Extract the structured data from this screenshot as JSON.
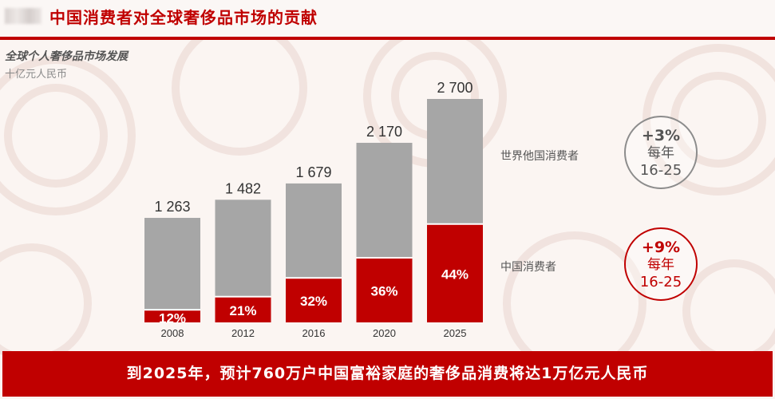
{
  "header": {
    "title": "中国消费者对全球奢侈品市场的贡献"
  },
  "chart": {
    "title": "全球个人奢侈品市场发展",
    "unit": "十亿元人民币"
  },
  "legend": {
    "others": "世界他国消费者",
    "china": "中国消费者"
  },
  "badges": {
    "others": {
      "rate": "+3%",
      "per": "每年",
      "period": "16-25"
    },
    "china": {
      "rate": "+9%",
      "per": "每年",
      "period": "16-25"
    }
  },
  "footer": {
    "text": "到2025年，预计760万户中国富裕家庭的奢侈品消费将达1万亿元人民币"
  },
  "colors": {
    "accent": "#c00000",
    "gray_bar": "#a6a6a6",
    "bg": "#fbf5f2"
  },
  "chart_data": {
    "type": "bar",
    "stacked": true,
    "categories": [
      "2008",
      "2012",
      "2016",
      "2020",
      "2025"
    ],
    "totals": [
      1263,
      1482,
      1679,
      2170,
      2700
    ],
    "total_labels": [
      "1 263",
      "1 482",
      "1 679",
      "2 170",
      "2 700"
    ],
    "series": [
      {
        "name": "中国消费者",
        "share_pct": [
          12,
          21,
          32,
          36,
          44
        ],
        "labels": [
          "12%",
          "21%",
          "32%",
          "36%",
          "44%"
        ],
        "color": "#c00000"
      },
      {
        "name": "世界他国消费者",
        "share_pct": [
          88,
          79,
          68,
          64,
          56
        ],
        "color": "#a6a6a6"
      }
    ],
    "ylim": [
      0,
      2700
    ],
    "grid": false,
    "legend_placement": "right"
  }
}
